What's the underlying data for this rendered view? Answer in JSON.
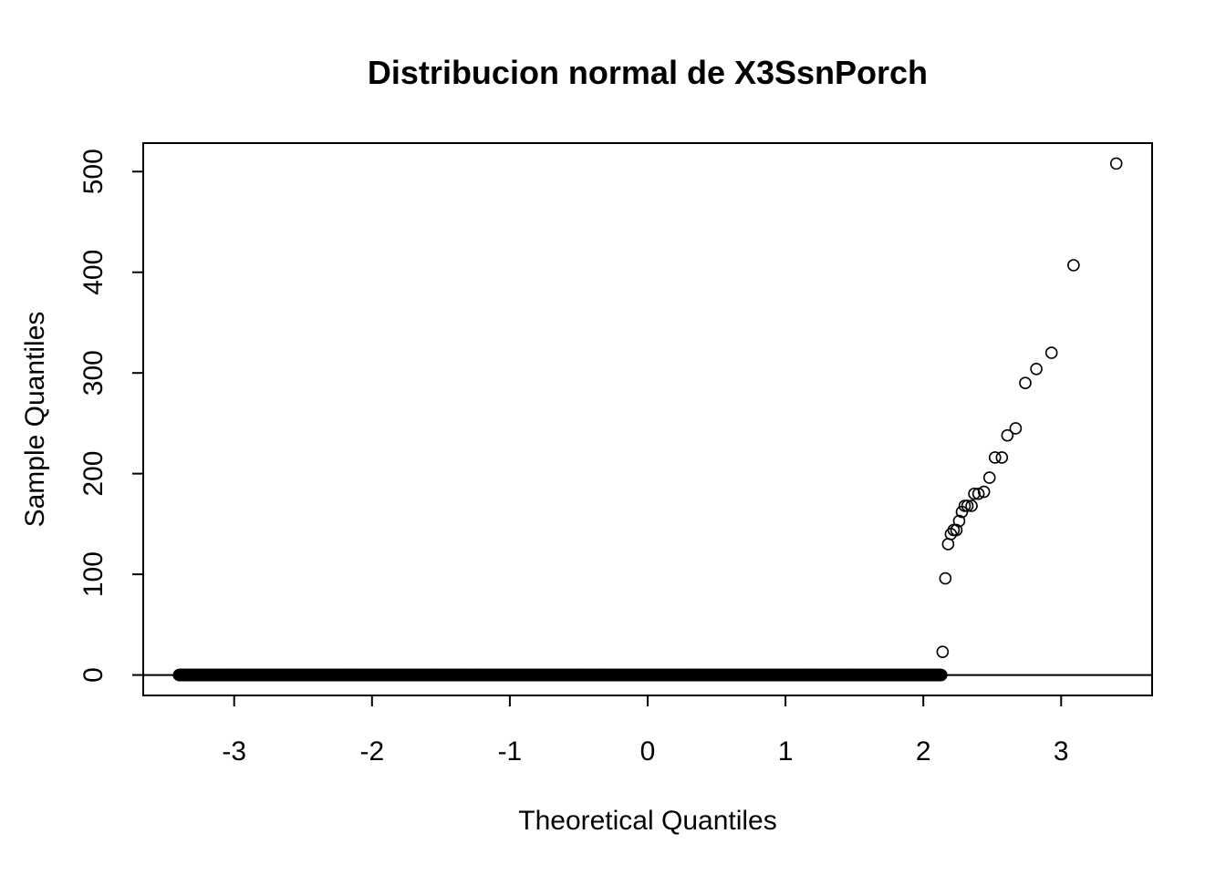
{
  "chart_data": {
    "type": "scatter",
    "title": "Distribucion normal de X3SsnPorch",
    "xlabel": "Theoretical Quantiles",
    "ylabel": "Sample Quantiles",
    "xlim": [
      -3.66,
      3.66
    ],
    "ylim": [
      -20.3,
      528.3
    ],
    "x_ticks": [
      -3,
      -2,
      -1,
      0,
      1,
      2,
      3
    ],
    "y_ticks": [
      0,
      100,
      200,
      300,
      400,
      500
    ],
    "x_tick_labels": [
      "-3",
      "-2",
      "-1",
      "0",
      "1",
      "2",
      "3"
    ],
    "y_tick_labels": [
      "0",
      "100",
      "200",
      "300",
      "400",
      "500"
    ],
    "grid": false,
    "reference_line": {
      "y": 0
    },
    "zero_run": {
      "x_start": -3.4,
      "x_end": 2.13,
      "y": 0,
      "count": 1436
    },
    "points": [
      {
        "x": 2.14,
        "y": 23
      },
      {
        "x": 2.16,
        "y": 96
      },
      {
        "x": 2.18,
        "y": 130
      },
      {
        "x": 2.2,
        "y": 140
      },
      {
        "x": 2.22,
        "y": 144
      },
      {
        "x": 2.24,
        "y": 144
      },
      {
        "x": 2.26,
        "y": 153
      },
      {
        "x": 2.28,
        "y": 162
      },
      {
        "x": 2.3,
        "y": 168
      },
      {
        "x": 2.32,
        "y": 168
      },
      {
        "x": 2.35,
        "y": 168
      },
      {
        "x": 2.37,
        "y": 180
      },
      {
        "x": 2.4,
        "y": 180
      },
      {
        "x": 2.44,
        "y": 182
      },
      {
        "x": 2.48,
        "y": 196
      },
      {
        "x": 2.52,
        "y": 216
      },
      {
        "x": 2.57,
        "y": 216
      },
      {
        "x": 2.61,
        "y": 238
      },
      {
        "x": 2.67,
        "y": 245
      },
      {
        "x": 2.74,
        "y": 290
      },
      {
        "x": 2.82,
        "y": 304
      },
      {
        "x": 2.93,
        "y": 320
      },
      {
        "x": 3.09,
        "y": 407
      },
      {
        "x": 3.4,
        "y": 508
      }
    ]
  }
}
